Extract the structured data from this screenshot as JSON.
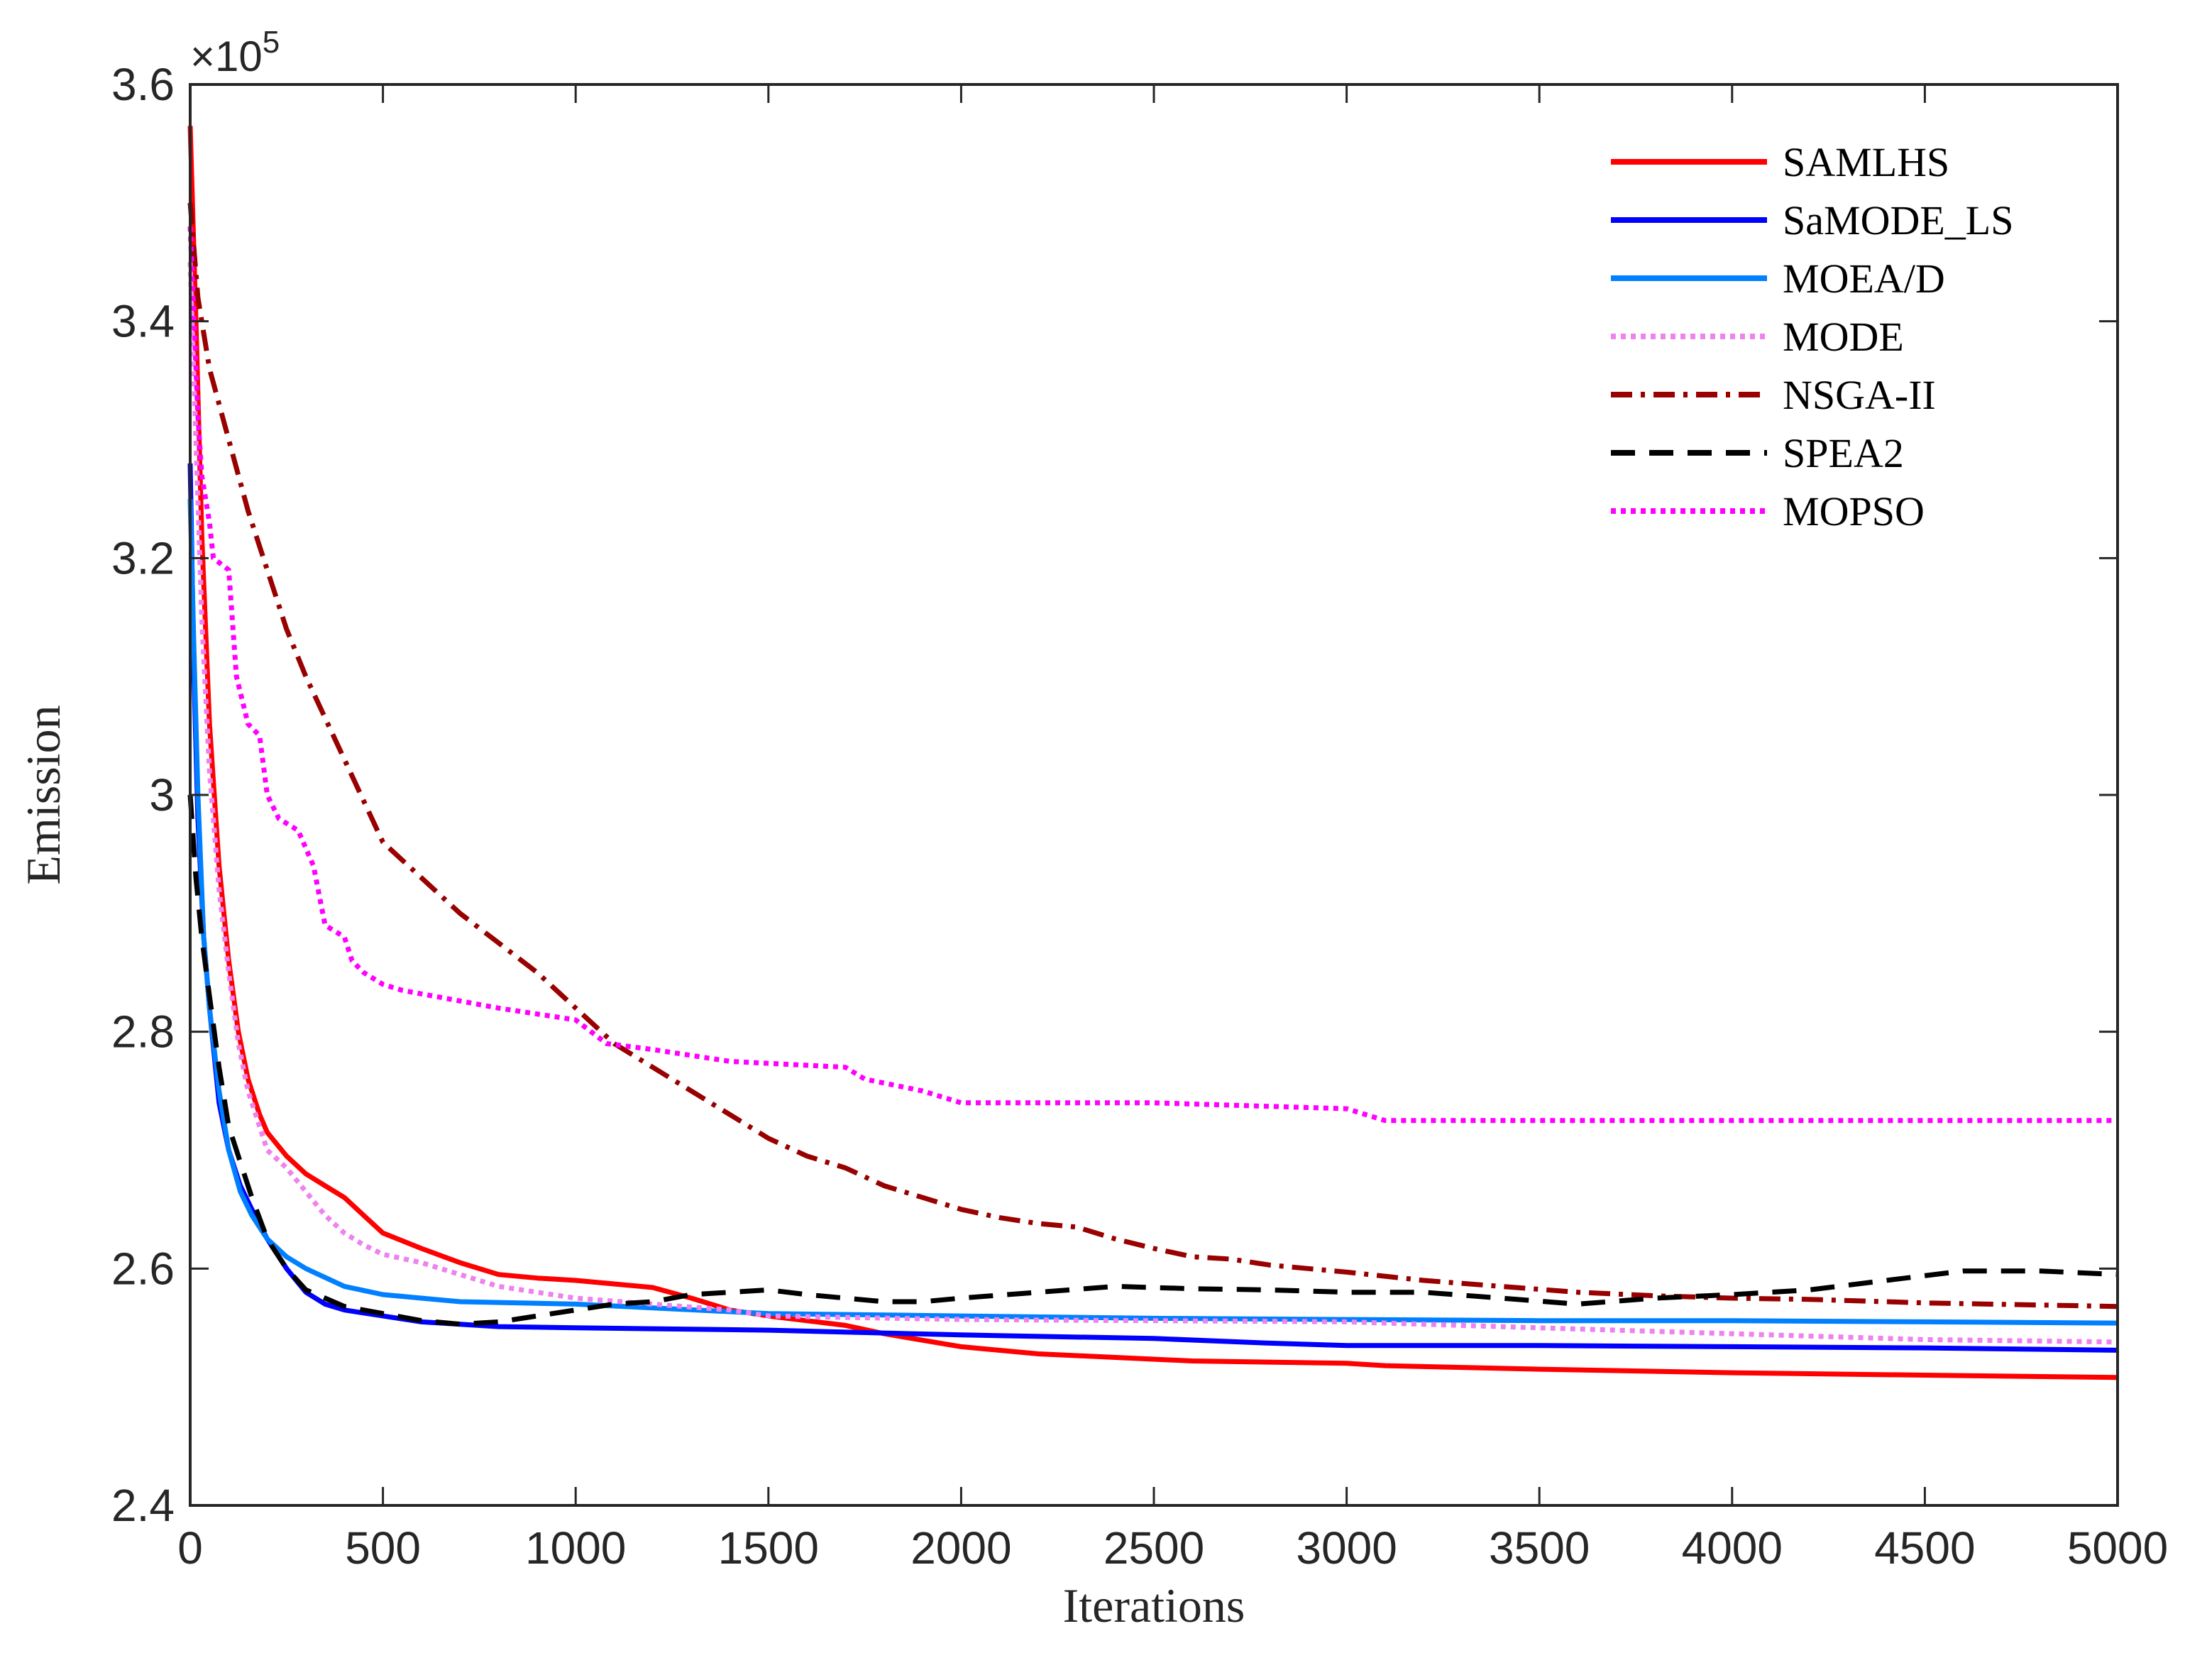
{
  "chart_data": {
    "type": "line",
    "title": "",
    "xlabel": "Iterations",
    "ylabel": "Emission",
    "y_multiplier_label": "×10",
    "y_multiplier_exponent": "5",
    "xlim": [
      0,
      5000
    ],
    "ylim": [
      2.4,
      3.6
    ],
    "x_ticks": [
      0,
      500,
      1000,
      1500,
      2000,
      2500,
      3000,
      3500,
      4000,
      4500,
      5000
    ],
    "x_tick_labels": [
      "0",
      "500",
      "1000",
      "1500",
      "2000",
      "2500",
      "3000",
      "3500",
      "4000",
      "4500",
      "5000"
    ],
    "y_ticks": [
      2.4,
      2.6,
      2.8,
      3.0,
      3.2,
      3.4,
      3.6
    ],
    "y_tick_labels": [
      "2.4",
      "2.6",
      "2.8",
      "3",
      "3.2",
      "3.4",
      "3.6"
    ],
    "legend_position": "top-right",
    "grid": false,
    "series": [
      {
        "name": "SAMLHS",
        "color": "#ff0000",
        "style": "solid",
        "points": [
          [
            0,
            3.565
          ],
          [
            15,
            3.4
          ],
          [
            30,
            3.22
          ],
          [
            50,
            3.06
          ],
          [
            75,
            2.94
          ],
          [
            100,
            2.86
          ],
          [
            125,
            2.8
          ],
          [
            150,
            2.76
          ],
          [
            180,
            2.73
          ],
          [
            200,
            2.715
          ],
          [
            250,
            2.695
          ],
          [
            300,
            2.68
          ],
          [
            350,
            2.67
          ],
          [
            400,
            2.66
          ],
          [
            450,
            2.645
          ],
          [
            500,
            2.63
          ],
          [
            600,
            2.617
          ],
          [
            700,
            2.605
          ],
          [
            800,
            2.595
          ],
          [
            900,
            2.592
          ],
          [
            1000,
            2.59
          ],
          [
            1100,
            2.587
          ],
          [
            1200,
            2.584
          ],
          [
            1300,
            2.575
          ],
          [
            1400,
            2.565
          ],
          [
            1500,
            2.56
          ],
          [
            1700,
            2.552
          ],
          [
            1800,
            2.545
          ],
          [
            2000,
            2.534
          ],
          [
            2200,
            2.528
          ],
          [
            2400,
            2.525
          ],
          [
            2600,
            2.522
          ],
          [
            3000,
            2.52
          ],
          [
            3100,
            2.518
          ],
          [
            3500,
            2.515
          ],
          [
            4000,
            2.512
          ],
          [
            4500,
            2.51
          ],
          [
            5000,
            2.508
          ]
        ]
      },
      {
        "name": "SaMODE_LS",
        "color": "#0000ff",
        "style": "solid",
        "points": [
          [
            0,
            3.28
          ],
          [
            10,
            3.1
          ],
          [
            20,
            2.98
          ],
          [
            35,
            2.88
          ],
          [
            50,
            2.82
          ],
          [
            75,
            2.74
          ],
          [
            100,
            2.7
          ],
          [
            130,
            2.67
          ],
          [
            160,
            2.65
          ],
          [
            200,
            2.625
          ],
          [
            250,
            2.6
          ],
          [
            300,
            2.58
          ],
          [
            350,
            2.57
          ],
          [
            400,
            2.565
          ],
          [
            500,
            2.56
          ],
          [
            600,
            2.555
          ],
          [
            700,
            2.553
          ],
          [
            800,
            2.551
          ],
          [
            1000,
            2.55
          ],
          [
            1500,
            2.548
          ],
          [
            2000,
            2.544
          ],
          [
            2500,
            2.541
          ],
          [
            2800,
            2.537
          ],
          [
            3000,
            2.535
          ],
          [
            3500,
            2.535
          ],
          [
            4000,
            2.534
          ],
          [
            4500,
            2.533
          ],
          [
            5000,
            2.531
          ]
        ]
      },
      {
        "name": "MOEA/D",
        "color": "#0080ff",
        "style": "solid",
        "points": [
          [
            0,
            3.25
          ],
          [
            10,
            3.12
          ],
          [
            20,
            3.0
          ],
          [
            35,
            2.88
          ],
          [
            50,
            2.82
          ],
          [
            75,
            2.75
          ],
          [
            100,
            2.7
          ],
          [
            130,
            2.665
          ],
          [
            160,
            2.645
          ],
          [
            200,
            2.625
          ],
          [
            250,
            2.61
          ],
          [
            300,
            2.6
          ],
          [
            400,
            2.585
          ],
          [
            500,
            2.578
          ],
          [
            600,
            2.575
          ],
          [
            700,
            2.572
          ],
          [
            1000,
            2.57
          ],
          [
            1500,
            2.562
          ],
          [
            2000,
            2.56
          ],
          [
            2500,
            2.558
          ],
          [
            3000,
            2.557
          ],
          [
            3500,
            2.556
          ],
          [
            4000,
            2.556
          ],
          [
            4500,
            2.555
          ],
          [
            5000,
            2.554
          ]
        ]
      },
      {
        "name": "MODE",
        "color": "#ee82ee",
        "style": "dotted",
        "points": [
          [
            0,
            3.45
          ],
          [
            15,
            3.3
          ],
          [
            30,
            3.15
          ],
          [
            50,
            3.02
          ],
          [
            75,
            2.92
          ],
          [
            100,
            2.85
          ],
          [
            125,
            2.79
          ],
          [
            150,
            2.75
          ],
          [
            180,
            2.72
          ],
          [
            200,
            2.7
          ],
          [
            250,
            2.685
          ],
          [
            300,
            2.665
          ],
          [
            350,
            2.645
          ],
          [
            400,
            2.63
          ],
          [
            450,
            2.62
          ],
          [
            500,
            2.612
          ],
          [
            600,
            2.605
          ],
          [
            700,
            2.595
          ],
          [
            800,
            2.585
          ],
          [
            900,
            2.58
          ],
          [
            1000,
            2.575
          ],
          [
            1200,
            2.57
          ],
          [
            1400,
            2.565
          ],
          [
            1500,
            2.56
          ],
          [
            2000,
            2.557
          ],
          [
            3000,
            2.555
          ],
          [
            3500,
            2.55
          ],
          [
            4000,
            2.545
          ],
          [
            4500,
            2.54
          ],
          [
            5000,
            2.538
          ]
        ]
      },
      {
        "name": "NSGA-II",
        "color": "#990000",
        "style": "dash-dot",
        "points": [
          [
            0,
            3.5
          ],
          [
            20,
            3.42
          ],
          [
            50,
            3.36
          ],
          [
            100,
            3.3
          ],
          [
            150,
            3.24
          ],
          [
            200,
            3.19
          ],
          [
            250,
            3.14
          ],
          [
            300,
            3.1
          ],
          [
            400,
            3.03
          ],
          [
            500,
            2.96
          ],
          [
            600,
            2.93
          ],
          [
            700,
            2.9
          ],
          [
            800,
            2.875
          ],
          [
            900,
            2.85
          ],
          [
            1000,
            2.82
          ],
          [
            1100,
            2.79
          ],
          [
            1200,
            2.77
          ],
          [
            1300,
            2.75
          ],
          [
            1400,
            2.73
          ],
          [
            1500,
            2.71
          ],
          [
            1600,
            2.695
          ],
          [
            1700,
            2.685
          ],
          [
            1800,
            2.67
          ],
          [
            1900,
            2.66
          ],
          [
            2000,
            2.65
          ],
          [
            2100,
            2.643
          ],
          [
            2200,
            2.638
          ],
          [
            2300,
            2.635
          ],
          [
            2400,
            2.625
          ],
          [
            2500,
            2.617
          ],
          [
            2600,
            2.61
          ],
          [
            2700,
            2.608
          ],
          [
            2800,
            2.603
          ],
          [
            2900,
            2.6
          ],
          [
            3000,
            2.597
          ],
          [
            3200,
            2.59
          ],
          [
            3400,
            2.585
          ],
          [
            3600,
            2.58
          ],
          [
            3800,
            2.577
          ],
          [
            4000,
            2.575
          ],
          [
            4200,
            2.574
          ],
          [
            4500,
            2.571
          ],
          [
            5000,
            2.568
          ]
        ]
      },
      {
        "name": "SPEA2",
        "color": "#000000",
        "style": "dashed",
        "points": [
          [
            0,
            3.0
          ],
          [
            15,
            2.93
          ],
          [
            30,
            2.88
          ],
          [
            50,
            2.83
          ],
          [
            75,
            2.77
          ],
          [
            100,
            2.72
          ],
          [
            130,
            2.69
          ],
          [
            160,
            2.66
          ],
          [
            200,
            2.625
          ],
          [
            250,
            2.6
          ],
          [
            300,
            2.582
          ],
          [
            350,
            2.575
          ],
          [
            400,
            2.568
          ],
          [
            500,
            2.562
          ],
          [
            600,
            2.556
          ],
          [
            700,
            2.553
          ],
          [
            800,
            2.555
          ],
          [
            900,
            2.56
          ],
          [
            1000,
            2.565
          ],
          [
            1100,
            2.57
          ],
          [
            1200,
            2.572
          ],
          [
            1300,
            2.578
          ],
          [
            1400,
            2.58
          ],
          [
            1500,
            2.582
          ],
          [
            1600,
            2.578
          ],
          [
            1700,
            2.575
          ],
          [
            1800,
            2.572
          ],
          [
            1900,
            2.572
          ],
          [
            2000,
            2.575
          ],
          [
            2200,
            2.58
          ],
          [
            2400,
            2.585
          ],
          [
            2600,
            2.583
          ],
          [
            2800,
            2.582
          ],
          [
            3000,
            2.58
          ],
          [
            3200,
            2.58
          ],
          [
            3400,
            2.575
          ],
          [
            3600,
            2.57
          ],
          [
            3800,
            2.575
          ],
          [
            4000,
            2.578
          ],
          [
            4200,
            2.582
          ],
          [
            4400,
            2.59
          ],
          [
            4600,
            2.598
          ],
          [
            4800,
            2.598
          ],
          [
            5000,
            2.595
          ]
        ]
      },
      {
        "name": "MOPSO",
        "color": "#ff00ff",
        "style": "dotted",
        "points": [
          [
            0,
            3.48
          ],
          [
            10,
            3.4
          ],
          [
            20,
            3.32
          ],
          [
            30,
            3.27
          ],
          [
            50,
            3.23
          ],
          [
            60,
            3.2
          ],
          [
            100,
            3.19
          ],
          [
            120,
            3.1
          ],
          [
            150,
            3.06
          ],
          [
            180,
            3.05
          ],
          [
            200,
            3.0
          ],
          [
            230,
            2.98
          ],
          [
            280,
            2.97
          ],
          [
            320,
            2.94
          ],
          [
            350,
            2.89
          ],
          [
            400,
            2.88
          ],
          [
            420,
            2.86
          ],
          [
            450,
            2.85
          ],
          [
            500,
            2.84
          ],
          [
            550,
            2.835
          ],
          [
            800,
            2.82
          ],
          [
            1000,
            2.81
          ],
          [
            1080,
            2.79
          ],
          [
            1200,
            2.785
          ],
          [
            1400,
            2.775
          ],
          [
            1700,
            2.77
          ],
          [
            1750,
            2.76
          ],
          [
            1900,
            2.75
          ],
          [
            2000,
            2.74
          ],
          [
            2500,
            2.74
          ],
          [
            3000,
            2.735
          ],
          [
            3100,
            2.725
          ],
          [
            3500,
            2.725
          ],
          [
            5000,
            2.725
          ]
        ]
      }
    ]
  }
}
